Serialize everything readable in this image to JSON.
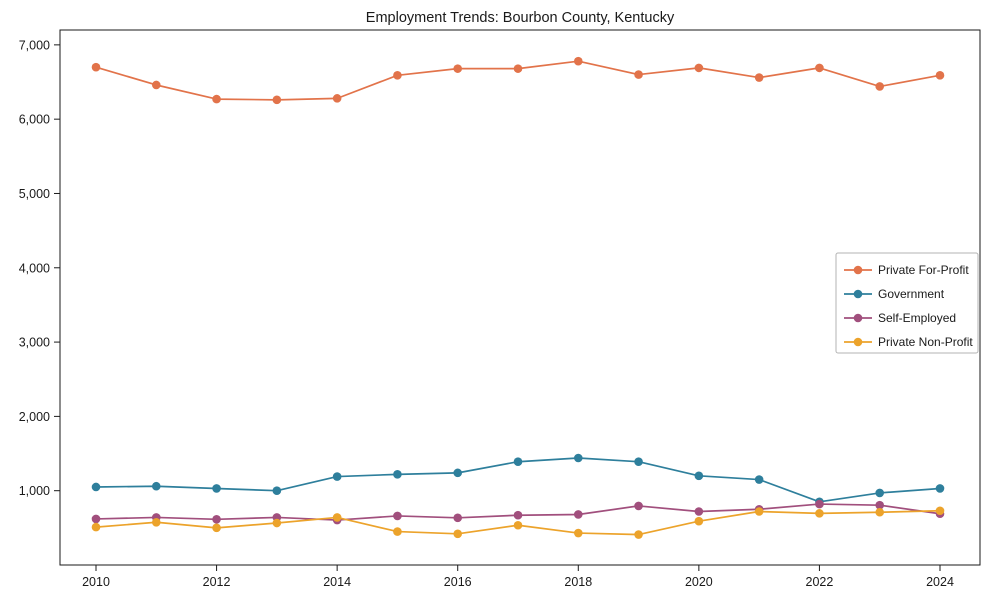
{
  "chart_data": {
    "type": "line",
    "title": "Employment Trends: Bourbon County, Kentucky",
    "x": [
      2010,
      2011,
      2012,
      2013,
      2014,
      2015,
      2016,
      2017,
      2018,
      2019,
      2020,
      2021,
      2022,
      2023,
      2024
    ],
    "xticklabels": [
      "2010",
      "2012",
      "2014",
      "2016",
      "2018",
      "2020",
      "2022",
      "2024"
    ],
    "yticks": [
      1000,
      2000,
      3000,
      4000,
      5000,
      6000,
      7000
    ],
    "yticklabels": [
      "1,000",
      "2,000",
      "3,000",
      "4,000",
      "5,000",
      "6,000",
      "7,000"
    ],
    "ylim": [
      0,
      7200
    ],
    "grid": false,
    "legend_position": "center right",
    "series": [
      {
        "name": "Private For-Profit",
        "color": "#e2734a",
        "values": [
          6700,
          6460,
          6270,
          6260,
          6280,
          6590,
          6680,
          6680,
          6780,
          6600,
          6690,
          6560,
          6690,
          6440,
          6590
        ]
      },
      {
        "name": "Government",
        "color": "#2e7f9c",
        "values": [
          1050,
          1060,
          1030,
          1000,
          1190,
          1220,
          1240,
          1390,
          1440,
          1390,
          1200,
          1150,
          850,
          970,
          1030
        ]
      },
      {
        "name": "Self-Employed",
        "color": "#a14f7d",
        "values": [
          620,
          640,
          615,
          640,
          605,
          660,
          635,
          670,
          680,
          795,
          720,
          750,
          820,
          805,
          690
        ]
      },
      {
        "name": "Private Non-Profit",
        "color": "#eca32b",
        "values": [
          510,
          575,
          500,
          565,
          640,
          450,
          420,
          535,
          430,
          410,
          590,
          720,
          695,
          710,
          730
        ]
      }
    ]
  }
}
